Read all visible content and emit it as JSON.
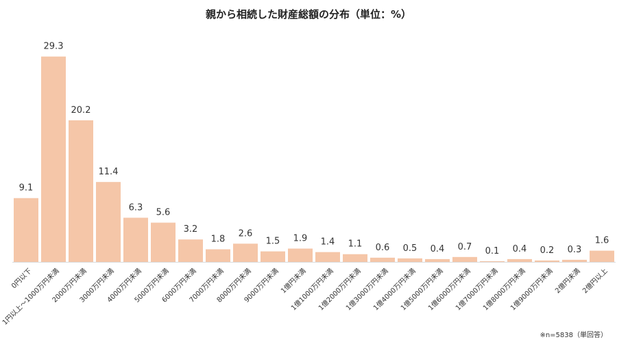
{
  "chart_data": {
    "type": "bar",
    "title": "親から相続した財産総額の分布（単位：%）",
    "categories": [
      "0円以下",
      "1円以上～1000万円未満",
      "2000万円未満",
      "3000万円未満",
      "4000万円未満",
      "5000万円未満",
      "6000万円未満",
      "7000万円未満",
      "8000万円未満",
      "9000万円未満",
      "1億円未満",
      "1億1000万円未満",
      "1億2000万円未満",
      "1億3000万円未満",
      "1億4000万円未満",
      "1億5000万円未満",
      "1億6000万円未満",
      "1億7000万円未満",
      "1億8000万円未満",
      "1億9000万円未満",
      "2億円未満",
      "2億円以上"
    ],
    "values": [
      9.1,
      29.3,
      20.2,
      11.4,
      6.3,
      5.6,
      3.2,
      1.8,
      2.6,
      1.5,
      1.9,
      1.4,
      1.1,
      0.6,
      0.5,
      0.4,
      0.7,
      0.1,
      0.4,
      0.2,
      0.3,
      1.6
    ],
    "value_labels": [
      "9.1",
      "29.3",
      "20.2",
      "11.4",
      "6.3",
      "5.6",
      "3.2",
      "1.8",
      "2.6",
      "1.5",
      "1.9",
      "1.4",
      "1.1",
      "0.6",
      "0.5",
      "0.4",
      "0.7",
      "0.1",
      "0.4",
      "0.2",
      "0.3",
      "1.6"
    ],
    "ylim": [
      0,
      30
    ],
    "bar_color": "#f5c6a8",
    "axis_color": "#d9d9d9",
    "grid": false,
    "legend": "none",
    "note": "※n=5838（単回答）"
  }
}
